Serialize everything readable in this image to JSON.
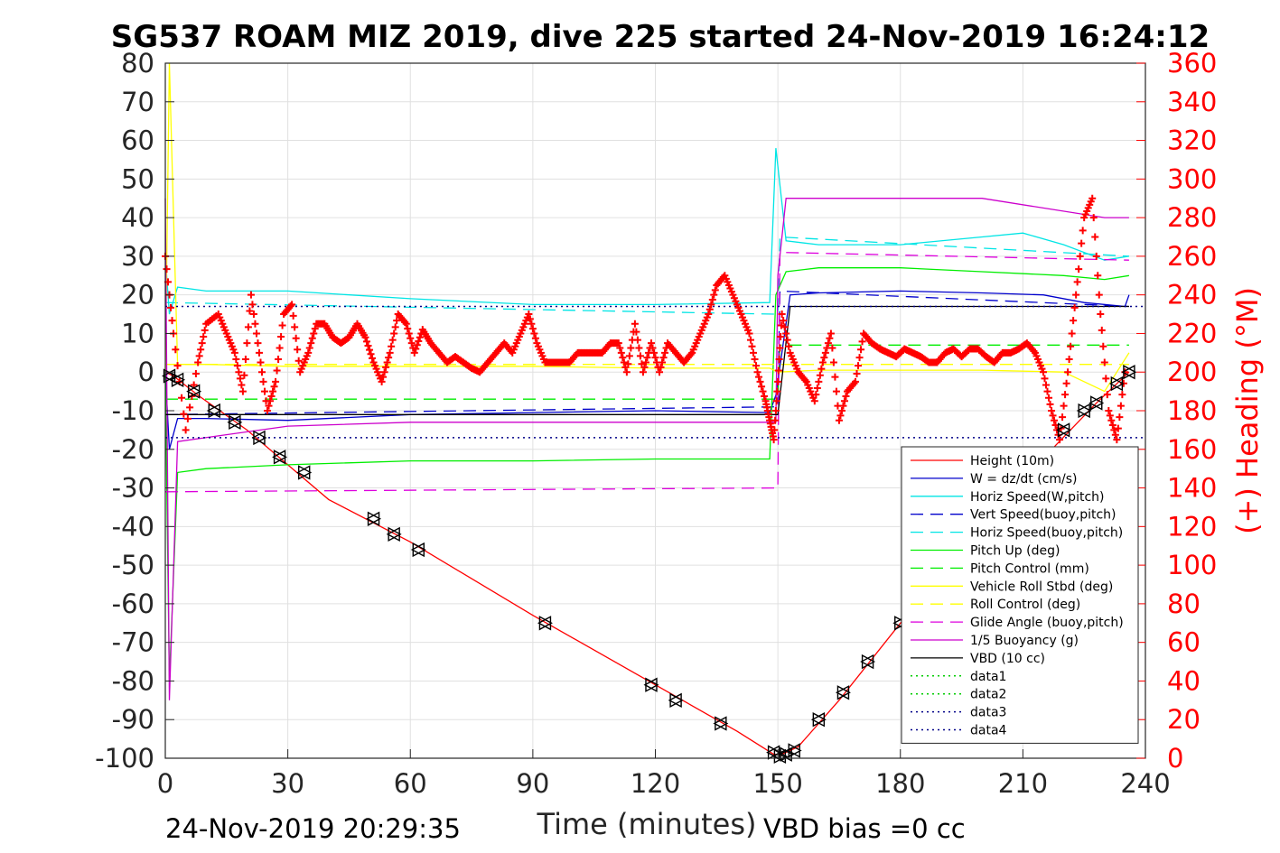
{
  "chart_data": {
    "type": "line",
    "title": "SG537 ROAM MIZ 2019, dive 225 started 24-Nov-2019 16:24:12",
    "xlabel": "Time (minutes)",
    "ylabel": "",
    "ylabel_right": "(+) Heading (°M)",
    "xlim": [
      0,
      240
    ],
    "ylim": [
      -100,
      80
    ],
    "ylim_right": [
      0,
      360
    ],
    "x_ticks": [
      "0",
      "30",
      "60",
      "90",
      "120",
      "150",
      "180",
      "210",
      "240"
    ],
    "y_ticks": [
      "80",
      "70",
      "60",
      "50",
      "40",
      "30",
      "20",
      "10",
      "0",
      "-10",
      "-20",
      "-30",
      "-40",
      "-50",
      "-60",
      "-70",
      "-80",
      "-90",
      "-100"
    ],
    "y_ticks_right": [
      "360",
      "340",
      "320",
      "300",
      "280",
      "260",
      "240",
      "220",
      "200",
      "180",
      "160",
      "140",
      "120",
      "100",
      "80",
      "60",
      "40",
      "20",
      "0"
    ],
    "grid": true,
    "legend_position": "lower-right",
    "footer_left": "24-Nov-2019 20:29:35",
    "footer_right": "VBD bias =0 cc",
    "series": [
      {
        "name": "Height (10m)",
        "color": "#ff0000",
        "style": "solid",
        "marker": "none",
        "x": [
          0,
          2,
          8,
          20,
          40,
          60,
          90,
          120,
          140,
          149,
          151,
          155,
          165,
          180,
          200,
          218,
          228,
          236
        ],
        "y": [
          0,
          -1,
          -6,
          -15,
          -33,
          -44,
          -63,
          -81,
          -93,
          -99,
          -99,
          -97,
          -85,
          -65,
          -42,
          -19,
          -8,
          0
        ]
      },
      {
        "name": "W = dz/dt (cm/s)",
        "color": "#0000cc",
        "style": "solid",
        "marker": "none",
        "x": [
          0,
          1,
          3,
          10,
          30,
          60,
          90,
          120,
          148,
          149.5,
          153,
          160,
          180,
          200,
          215,
          225,
          235,
          236
        ],
        "y": [
          0,
          -20,
          -12,
          -12,
          -12.5,
          -11,
          -10.5,
          -10,
          -10.5,
          -6,
          20,
          20.5,
          21,
          20.5,
          20,
          18,
          17,
          20
        ]
      },
      {
        "name": "Horiz Speed(W,pitch)",
        "color": "#00e5e5",
        "style": "solid",
        "marker": "none",
        "x": [
          0,
          1,
          3,
          10,
          30,
          60,
          90,
          120,
          148,
          149.5,
          152,
          160,
          180,
          200,
          210,
          220,
          230,
          236
        ],
        "y": [
          30,
          15,
          22,
          21,
          21,
          19,
          17.5,
          17.5,
          18,
          58,
          34,
          33,
          33,
          35,
          36,
          33,
          29,
          30
        ]
      },
      {
        "name": "Vert Speed(buoy,pitch)",
        "color": "#0000cc",
        "style": "dash",
        "marker": "none",
        "x": [
          0,
          150,
          150.5,
          236
        ],
        "y": [
          -11,
          -9,
          21,
          17
        ]
      },
      {
        "name": "Horiz Speed(buoy,pitch)",
        "color": "#00e5e5",
        "style": "dash",
        "marker": "none",
        "x": [
          0,
          150,
          150.5,
          236
        ],
        "y": [
          18,
          15,
          35,
          30
        ]
      },
      {
        "name": "Pitch Up (deg)",
        "color": "#00ee00",
        "style": "solid",
        "marker": "none",
        "x": [
          0,
          1,
          3,
          10,
          30,
          60,
          90,
          120,
          148,
          149.5,
          152,
          160,
          180,
          200,
          220,
          230,
          236
        ],
        "y": [
          0,
          -80,
          -26,
          -25,
          -24,
          -23,
          -23,
          -22.5,
          -22.5,
          20,
          26,
          27,
          27,
          26,
          25,
          24,
          25
        ]
      },
      {
        "name": "Pitch Control (mm)",
        "color": "#00ee00",
        "style": "dash",
        "marker": "none",
        "x": [
          0,
          150,
          150.5,
          236
        ],
        "y": [
          -7,
          -7,
          7,
          7
        ]
      },
      {
        "name": "Vehicle Roll Stbd (deg)",
        "color": "#ffff00",
        "style": "solid",
        "marker": "none",
        "x": [
          0,
          1,
          3,
          10,
          30,
          60,
          90,
          120,
          148,
          150,
          160,
          180,
          200,
          220,
          230,
          236
        ],
        "y": [
          0,
          80,
          2,
          2,
          1.5,
          1.5,
          1.5,
          1,
          1,
          0,
          0.5,
          0.5,
          0.5,
          0,
          -5,
          5
        ]
      },
      {
        "name": "Roll Control (deg)",
        "color": "#ffff00",
        "style": "dash",
        "marker": "none",
        "x": [
          0,
          236
        ],
        "y": [
          2,
          2
        ]
      },
      {
        "name": "Glide Angle (buoy,pitch)",
        "color": "#dd00dd",
        "style": "dash",
        "marker": "none",
        "x": [
          0,
          150,
          150.5,
          236
        ],
        "y": [
          -31,
          -30,
          31,
          29
        ]
      },
      {
        "name": "1/5 Buoyancy (g)",
        "color": "#cc00cc",
        "style": "solid",
        "marker": "none",
        "x": [
          0,
          1,
          3,
          30,
          60,
          149.5,
          150,
          152,
          200,
          230,
          236
        ],
        "y": [
          45,
          -85,
          -18,
          -14,
          -13,
          -13,
          25,
          45,
          45,
          40,
          40
        ]
      },
      {
        "name": "VBD (10 cc)",
        "color": "#000000",
        "style": "solid",
        "marker": "none",
        "x": [
          0,
          150,
          153,
          236
        ],
        "y": [
          -11,
          -11,
          17,
          17
        ]
      },
      {
        "name": "data1",
        "color": "#00cc00",
        "style": "dot",
        "marker": "none",
        "x": [],
        "y": []
      },
      {
        "name": "data2",
        "color": "#00cc00",
        "style": "dot",
        "marker": "none",
        "x": [],
        "y": []
      },
      {
        "name": "data3",
        "color": "#000088",
        "style": "dot",
        "marker": "none",
        "x": [
          0,
          240
        ],
        "y": [
          17,
          17
        ]
      },
      {
        "name": "data4",
        "color": "#000088",
        "style": "dot",
        "marker": "none",
        "x": [
          0,
          240
        ],
        "y": [
          -17,
          -17
        ]
      }
    ],
    "heading_series": {
      "color": "#ff0000",
      "marker": "+",
      "axis": "right",
      "x": [
        0,
        2,
        5,
        8,
        10,
        13,
        15,
        17,
        19,
        21,
        23,
        25,
        27,
        29,
        31,
        33,
        35,
        37,
        39,
        41,
        43,
        45,
        47,
        49,
        51,
        53,
        55,
        57,
        59,
        61,
        63,
        65,
        67,
        69,
        71,
        73,
        75,
        77,
        79,
        81,
        83,
        85,
        87,
        89,
        91,
        93,
        95,
        97,
        99,
        101,
        103,
        105,
        107,
        109,
        111,
        113,
        115,
        117,
        119,
        121,
        123,
        125,
        127,
        129,
        131,
        133,
        135,
        137,
        139,
        141,
        143,
        145,
        147,
        148,
        149,
        150,
        151,
        153,
        155,
        157,
        159,
        161,
        163,
        165,
        167,
        169,
        171,
        173,
        175,
        177,
        179,
        181,
        183,
        185,
        187,
        189,
        191,
        193,
        195,
        197,
        199,
        201,
        203,
        205,
        207,
        209,
        211,
        213,
        215,
        217,
        219,
        221,
        223,
        225,
        227,
        229,
        231,
        233,
        235
      ],
      "y": [
        260,
        220,
        170,
        205,
        225,
        230,
        220,
        210,
        190,
        240,
        210,
        180,
        195,
        230,
        235,
        200,
        210,
        225,
        225,
        218,
        215,
        218,
        225,
        218,
        205,
        195,
        210,
        230,
        225,
        210,
        222,
        215,
        210,
        205,
        208,
        205,
        202,
        200,
        205,
        210,
        215,
        210,
        220,
        230,
        215,
        205,
        205,
        205,
        205,
        210,
        210,
        210,
        210,
        215,
        215,
        200,
        225,
        200,
        215,
        200,
        215,
        210,
        205,
        210,
        220,
        230,
        245,
        250,
        240,
        230,
        220,
        200,
        185,
        175,
        165,
        195,
        230,
        210,
        200,
        195,
        185,
        205,
        220,
        175,
        190,
        195,
        220,
        215,
        212,
        210,
        208,
        212,
        210,
        208,
        205,
        205,
        210,
        212,
        208,
        212,
        212,
        208,
        205,
        210,
        210,
        212,
        215,
        210,
        200,
        180,
        165,
        200,
        240,
        280,
        290,
        230,
        180,
        165,
        200
      ]
    },
    "marker_series": {
      "color": "#000000",
      "marker": "triangle",
      "x": [
        1,
        3,
        7,
        12,
        17,
        23,
        28,
        34,
        51,
        56,
        62,
        93,
        119,
        125,
        136,
        149,
        150.5,
        152,
        154,
        160,
        166,
        172,
        180,
        220,
        225,
        228,
        233,
        236
      ],
      "y": [
        -1,
        -2,
        -5,
        -10,
        -13,
        -17,
        -22,
        -26,
        -38,
        -42,
        -46,
        -65,
        -81,
        -85,
        -91,
        -98.5,
        -99.5,
        -99,
        -98,
        -90,
        -83,
        -75,
        -65,
        -15,
        -10,
        -8,
        -3,
        0
      ]
    }
  }
}
